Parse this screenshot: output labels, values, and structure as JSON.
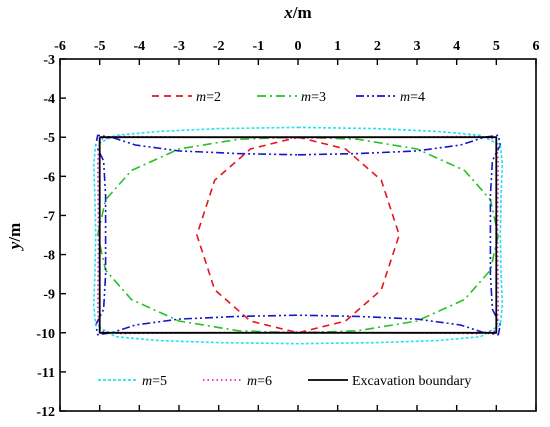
{
  "chart_data": {
    "type": "line",
    "xlabel": {
      "var": "x",
      "unit": "/m"
    },
    "ylabel": {
      "var": "y",
      "unit": "/m"
    },
    "xlim": [
      -6,
      6
    ],
    "ylim": [
      -12,
      -3
    ],
    "x_ticks": [
      -6,
      -5,
      -4,
      -3,
      -2,
      -1,
      0,
      1,
      2,
      3,
      4,
      5,
      6
    ],
    "y_ticks": [
      -3,
      -4,
      -5,
      -6,
      -7,
      -8,
      -9,
      -10,
      -11,
      -12
    ],
    "x_tick_labels": [
      "-6",
      "-5",
      "-4",
      "-3",
      "-2",
      "-1",
      "0",
      "1",
      "2",
      "3",
      "4",
      "5",
      "6"
    ],
    "y_tick_labels": [
      "-3",
      "-4",
      "-5",
      "-6",
      "-7",
      "-8",
      "-9",
      "-10",
      "-11",
      "-12"
    ],
    "legend_placement": "inside-top-and-bottom",
    "series": [
      {
        "name": "m=2",
        "var": "m",
        "eq": "=2",
        "color": "#e8141b",
        "dash": "7,5",
        "points": [
          [
            0,
            -5
          ],
          [
            1.2,
            -5.3
          ],
          [
            2.1,
            -6.1
          ],
          [
            2.55,
            -7.5
          ],
          [
            2.1,
            -8.9
          ],
          [
            1.2,
            -9.7
          ],
          [
            0,
            -10
          ],
          [
            -1.2,
            -9.7
          ],
          [
            -2.1,
            -8.9
          ],
          [
            -2.55,
            -7.5
          ],
          [
            -2.1,
            -6.1
          ],
          [
            -1.2,
            -5.3
          ],
          [
            0,
            -5
          ]
        ]
      },
      {
        "name": "m=3",
        "var": "m",
        "eq": "=3",
        "color": "#22c322",
        "dash": "9,4,2,4",
        "points": [
          [
            0,
            -5
          ],
          [
            1.5,
            -5.05
          ],
          [
            3,
            -5.3
          ],
          [
            4.2,
            -5.85
          ],
          [
            4.85,
            -6.6
          ],
          [
            5.05,
            -7.5
          ],
          [
            4.85,
            -8.4
          ],
          [
            4.2,
            -9.15
          ],
          [
            3,
            -9.7
          ],
          [
            1.5,
            -9.95
          ],
          [
            0,
            -10
          ],
          [
            -1.5,
            -9.95
          ],
          [
            -3,
            -9.7
          ],
          [
            -4.2,
            -9.15
          ],
          [
            -4.85,
            -8.4
          ],
          [
            -5.05,
            -7.5
          ],
          [
            -4.85,
            -6.6
          ],
          [
            -4.2,
            -5.85
          ],
          [
            -3,
            -5.3
          ],
          [
            -1.5,
            -5.05
          ],
          [
            0,
            -5
          ]
        ]
      },
      {
        "name": "m=4",
        "var": "m",
        "eq": "=4",
        "color": "#1616c8",
        "dash": "8,3,2,3,2,3",
        "points": [
          [
            0,
            -5.45
          ],
          [
            1.5,
            -5.42
          ],
          [
            3,
            -5.35
          ],
          [
            4.1,
            -5.2
          ],
          [
            4.7,
            -5.0
          ],
          [
            5.05,
            -4.95
          ],
          [
            5.1,
            -5.2
          ],
          [
            4.9,
            -5.6
          ],
          [
            4.85,
            -6.5
          ],
          [
            4.85,
            -7.5
          ],
          [
            4.85,
            -8.5
          ],
          [
            4.9,
            -9.4
          ],
          [
            5.1,
            -9.8
          ],
          [
            5.05,
            -10.05
          ],
          [
            4.7,
            -10.0
          ],
          [
            4.1,
            -9.8
          ],
          [
            3,
            -9.65
          ],
          [
            1.5,
            -9.58
          ],
          [
            0,
            -9.55
          ],
          [
            -1.5,
            -9.58
          ],
          [
            -3,
            -9.65
          ],
          [
            -4.1,
            -9.8
          ],
          [
            -4.7,
            -10.0
          ],
          [
            -5.05,
            -10.05
          ],
          [
            -5.1,
            -9.8
          ],
          [
            -4.9,
            -9.4
          ],
          [
            -4.85,
            -8.5
          ],
          [
            -4.85,
            -7.5
          ],
          [
            -4.85,
            -6.5
          ],
          [
            -4.9,
            -5.6
          ],
          [
            -5.1,
            -5.2
          ],
          [
            -5.05,
            -4.95
          ],
          [
            -4.7,
            -5.0
          ],
          [
            -4.1,
            -5.2
          ],
          [
            -3,
            -5.35
          ],
          [
            -1.5,
            -5.42
          ],
          [
            0,
            -5.45
          ]
        ]
      },
      {
        "name": "m=5",
        "var": "m",
        "eq": "=5",
        "color": "#22e4f0",
        "dash": "3,2",
        "points": [
          [
            0,
            -4.75
          ],
          [
            2,
            -4.78
          ],
          [
            3.5,
            -4.85
          ],
          [
            4.6,
            -4.95
          ],
          [
            5.1,
            -5.2
          ],
          [
            5.15,
            -5.7
          ],
          [
            5.12,
            -6.5
          ],
          [
            5.1,
            -7.5
          ],
          [
            5.12,
            -8.5
          ],
          [
            5.15,
            -9.3
          ],
          [
            5.1,
            -9.8
          ],
          [
            4.6,
            -10.1
          ],
          [
            3.5,
            -10.2
          ],
          [
            2,
            -10.25
          ],
          [
            0,
            -10.28
          ],
          [
            -2,
            -10.25
          ],
          [
            -3.5,
            -10.2
          ],
          [
            -4.6,
            -10.1
          ],
          [
            -5.1,
            -9.8
          ],
          [
            -5.15,
            -9.3
          ],
          [
            -5.12,
            -8.5
          ],
          [
            -5.1,
            -7.5
          ],
          [
            -5.12,
            -6.5
          ],
          [
            -5.15,
            -5.7
          ],
          [
            -5.1,
            -5.2
          ],
          [
            -4.6,
            -4.95
          ],
          [
            -3.5,
            -4.85
          ],
          [
            -2,
            -4.78
          ],
          [
            0,
            -4.75
          ]
        ]
      },
      {
        "name": "m=6",
        "var": "m",
        "eq": "=6",
        "color": "#e020e0",
        "dash": "1.5,3",
        "points": [
          [
            0,
            -5.02
          ],
          [
            2.5,
            -5.0
          ],
          [
            4.5,
            -4.98
          ],
          [
            5.0,
            -5.05
          ],
          [
            5.05,
            -5.6
          ],
          [
            5.03,
            -7.5
          ],
          [
            5.05,
            -9.4
          ],
          [
            5.0,
            -9.95
          ],
          [
            4.5,
            -10.02
          ],
          [
            2.5,
            -10.0
          ],
          [
            0,
            -9.98
          ],
          [
            -2.5,
            -10.0
          ],
          [
            -4.5,
            -10.02
          ],
          [
            -5.0,
            -9.95
          ],
          [
            -5.05,
            -9.4
          ],
          [
            -5.03,
            -7.5
          ],
          [
            -5.05,
            -5.6
          ],
          [
            -5.0,
            -5.05
          ],
          [
            -4.5,
            -4.98
          ],
          [
            -2.5,
            -5.0
          ],
          [
            0,
            -5.02
          ]
        ]
      },
      {
        "name": "Excavation boundary",
        "var": "",
        "eq": "",
        "color": "#000000",
        "dash": "",
        "points": [
          [
            -5,
            -5
          ],
          [
            5,
            -5
          ],
          [
            5,
            -10
          ],
          [
            -5,
            -10
          ],
          [
            -5,
            -5
          ]
        ]
      }
    ]
  }
}
